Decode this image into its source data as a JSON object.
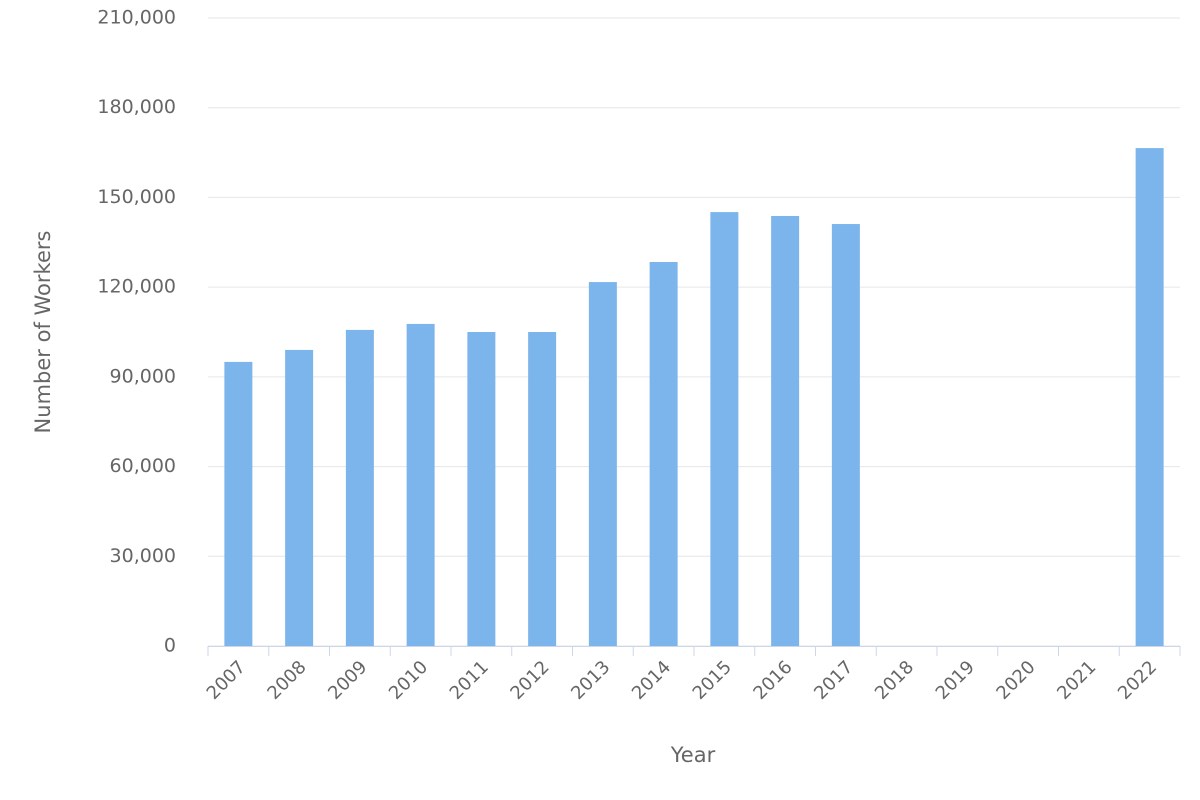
{
  "chart_data": {
    "type": "bar",
    "x_label": "Year",
    "y_label": "Number of Workers",
    "categories": [
      "2007",
      "2008",
      "2009",
      "2010",
      "2011",
      "2012",
      "2013",
      "2014",
      "2015",
      "2016",
      "2017",
      "2018",
      "2019",
      "2020",
      "2021",
      "2022"
    ],
    "values": [
      95000,
      99000,
      105700,
      107700,
      105000,
      105000,
      121700,
      128400,
      145100,
      143800,
      141100,
      null,
      null,
      null,
      null,
      166500
    ],
    "color": "#7cb5ec",
    "ylim": [
      0,
      210000
    ],
    "yticks": [
      0,
      {
        "value": 30000,
        "label": "30,000"
      },
      {
        "value": 60000,
        "label": "60,000"
      },
      {
        "value": 90000,
        "label": "90,000"
      },
      {
        "value": 120000,
        "label": "120,000"
      },
      {
        "value": 150000,
        "label": "150,000"
      },
      {
        "value": 180000,
        "label": "180,000"
      },
      {
        "value": 210000,
        "label": "210,000"
      }
    ],
    "grid": true
  }
}
